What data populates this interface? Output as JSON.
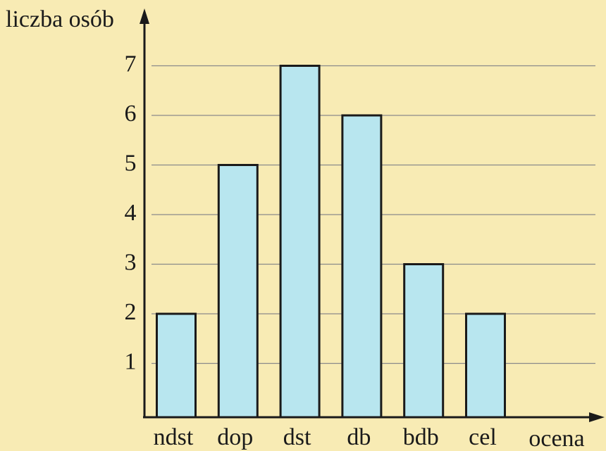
{
  "chart_data": {
    "type": "bar",
    "categories": [
      "ndst",
      "dop",
      "dst",
      "db",
      "bdb",
      "cel"
    ],
    "values": [
      2,
      5,
      7,
      6,
      3,
      2
    ],
    "color": "#b8e6ef",
    "ylabel": "liczba osób",
    "xlabel": "ocena",
    "ylim": [
      0,
      8
    ],
    "yticks": [
      1,
      2,
      3,
      4,
      5,
      6,
      7
    ],
    "grid": true
  }
}
